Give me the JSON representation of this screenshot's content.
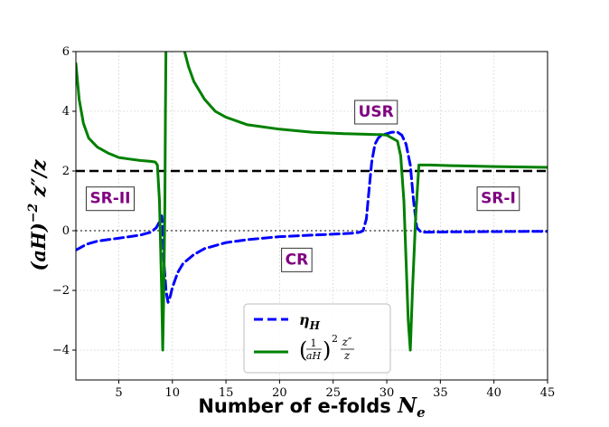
{
  "chart_data": {
    "type": "line",
    "xlabel": "Number of e-folds N_e",
    "xlabel_text": "Number of e-folds ",
    "xlabel_symbol": "N",
    "xlabel_subscript": "e",
    "ylabel": "(aH)^-2 z''/z",
    "xlim": [
      1,
      45
    ],
    "ylim": [
      -5,
      6
    ],
    "xticks": [
      5,
      10,
      15,
      20,
      25,
      30,
      35,
      40,
      45
    ],
    "yticks": [
      -4,
      -2,
      0,
      2,
      4,
      6
    ],
    "grid": true,
    "legend_position": "bottom-center",
    "colors": {
      "eta": "#0000ff",
      "zpp": "#008000",
      "ref2": "#000000",
      "ref0": "#808080",
      "region": "#800080"
    },
    "reference_lines": [
      {
        "y": 2,
        "style": "dashed",
        "color": "#000000"
      },
      {
        "y": 0,
        "style": "dotted",
        "color": "#808080"
      }
    ],
    "annotations": [
      {
        "text": "SR-II",
        "x": 4.2,
        "y": 1.1
      },
      {
        "text": "CR",
        "x": 21.6,
        "y": -0.95
      },
      {
        "text": "USR",
        "x": 29.0,
        "y": 4.0
      },
      {
        "text": "SR-I",
        "x": 40.4,
        "y": 1.1
      }
    ],
    "series": [
      {
        "name": "η_H",
        "legend_symbol": "η",
        "legend_subscript": "H",
        "style": "dashed",
        "color": "#0000ff",
        "x": [
          1,
          2,
          3,
          4,
          5,
          6,
          7,
          8,
          8.5,
          8.8,
          9.0,
          9.1,
          9.2,
          9.4,
          9.6,
          9.8,
          10,
          10.5,
          11,
          12,
          13,
          15,
          17,
          20,
          23,
          26,
          27,
          27.5,
          27.8,
          28.1,
          28.3,
          28.6,
          28.9,
          29.2,
          29.5,
          30,
          30.5,
          31,
          31.4,
          31.8,
          32.2,
          32.5,
          32.8,
          33.2,
          34,
          36,
          40,
          45
        ],
        "y": [
          -0.65,
          -0.45,
          -0.35,
          -0.3,
          -0.25,
          -0.2,
          -0.15,
          -0.05,
          0.1,
          0.3,
          0.5,
          0.2,
          -1.0,
          -2.0,
          -2.4,
          -2.2,
          -1.9,
          -1.4,
          -1.1,
          -0.8,
          -0.6,
          -0.4,
          -0.3,
          -0.2,
          -0.15,
          -0.1,
          -0.08,
          -0.05,
          0.0,
          0.4,
          1.2,
          2.3,
          2.9,
          3.1,
          3.2,
          3.25,
          3.3,
          3.3,
          3.2,
          2.9,
          2.2,
          1.0,
          0.1,
          -0.05,
          -0.05,
          -0.04,
          -0.03,
          -0.02
        ]
      },
      {
        "name": "(1/aH)^2 z''/z",
        "legend_fraction_num": "1",
        "legend_fraction_den": "aH",
        "legend_power": "2",
        "legend_tail_num": "z″",
        "legend_tail_den": "z",
        "style": "solid",
        "color": "#008000",
        "x": [
          1,
          1.3,
          1.7,
          2.2,
          3,
          4,
          5,
          6,
          7,
          8,
          8.4,
          8.6,
          8.8,
          9.0,
          9.1,
          9.2,
          9.3,
          9.35,
          9.4,
          9.45,
          9.6,
          11.0,
          11.5,
          12,
          13,
          14,
          15,
          17,
          20,
          23,
          26,
          28,
          29,
          29.5,
          30,
          30.5,
          31,
          31.3,
          31.6,
          31.8,
          32.0,
          32.2,
          32.4,
          32.7,
          33.0,
          34,
          36,
          40,
          45
        ],
        "y": [
          5.6,
          4.4,
          3.6,
          3.1,
          2.8,
          2.6,
          2.45,
          2.4,
          2.35,
          2.32,
          2.3,
          2.2,
          1.0,
          -2.0,
          -4.0,
          -2.0,
          1.0,
          4.0,
          6.2,
          6.2,
          6.2,
          6.2,
          5.5,
          5.0,
          4.4,
          4.0,
          3.8,
          3.55,
          3.4,
          3.3,
          3.25,
          3.23,
          3.22,
          3.22,
          3.2,
          3.1,
          3.0,
          2.5,
          1.0,
          -1.0,
          -3.0,
          -4.0,
          -2.0,
          0.5,
          2.2,
          2.2,
          2.18,
          2.15,
          2.12
        ]
      }
    ]
  }
}
